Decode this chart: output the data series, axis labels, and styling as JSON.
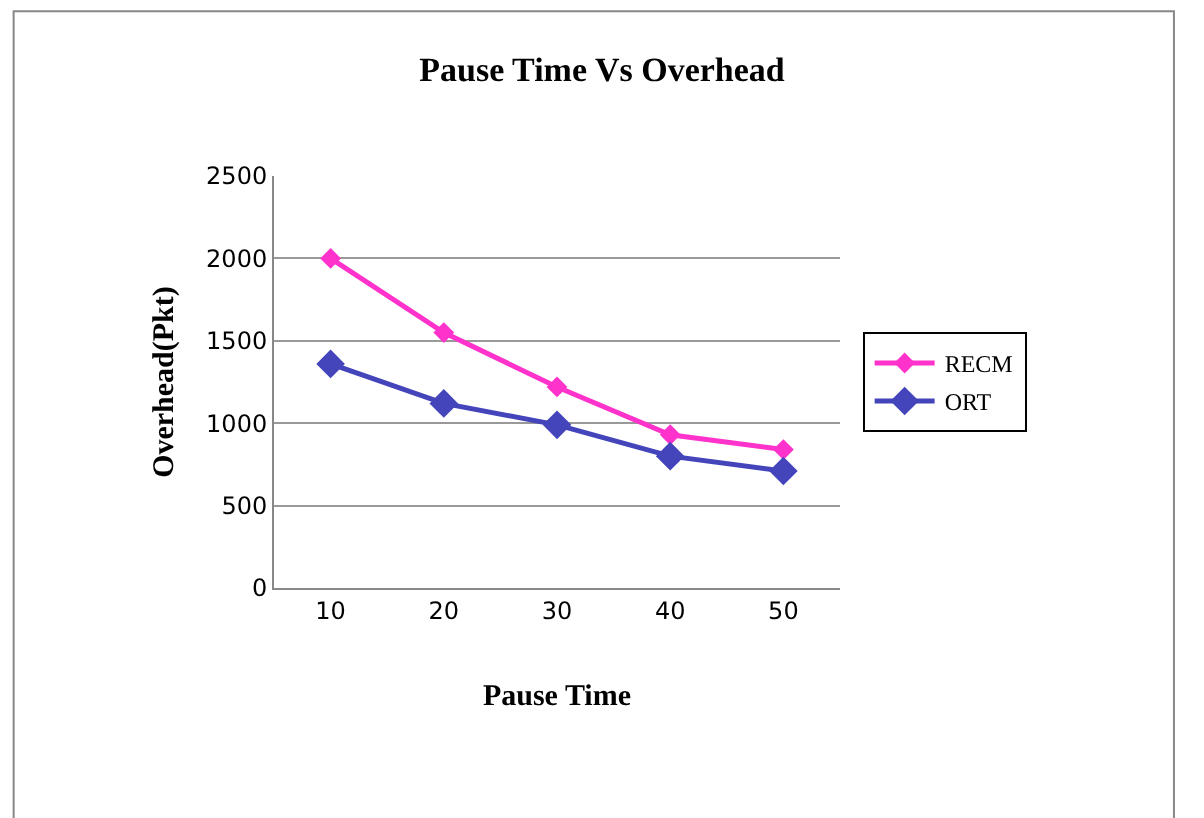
{
  "chart_data": {
    "type": "line",
    "title": "Pause Time Vs Overhead",
    "xlabel": "Pause Time",
    "ylabel": "Overhead(Pkt)",
    "categories": [
      "10",
      "20",
      "30",
      "40",
      "50"
    ],
    "series": [
      {
        "name": "RECM",
        "color": "#ff33cc",
        "values": [
          2000,
          1550,
          1220,
          930,
          840
        ]
      },
      {
        "name": "ORT",
        "color": "#4444bb",
        "values": [
          1360,
          1120,
          990,
          800,
          710
        ]
      }
    ],
    "ylim": [
      0,
      2500
    ],
    "yticks": [
      0,
      500,
      1000,
      1500,
      2000,
      2500
    ],
    "grid": "y",
    "legend": "right",
    "marker": "diamond",
    "line_style": "solid"
  }
}
